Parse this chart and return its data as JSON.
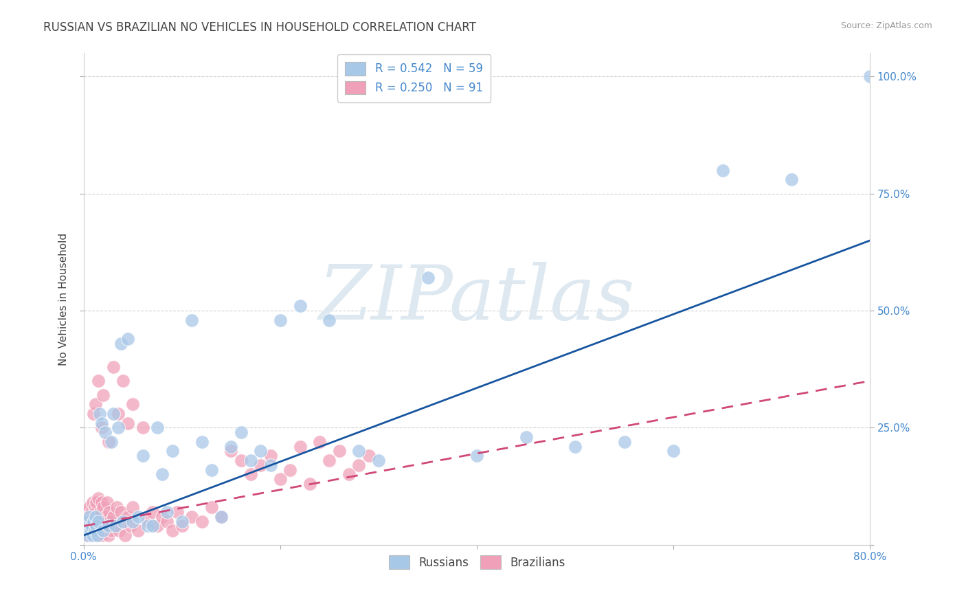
{
  "title": "RUSSIAN VS BRAZILIAN NO VEHICLES IN HOUSEHOLD CORRELATION CHART",
  "source": "Source: ZipAtlas.com",
  "ylabel": "No Vehicles in Household",
  "xlim": [
    0.0,
    0.8
  ],
  "ylim": [
    0.0,
    1.05
  ],
  "ytick_positions": [
    0.0,
    0.25,
    0.5,
    0.75,
    1.0
  ],
  "ytick_labels": [
    "",
    "25.0%",
    "50.0%",
    "75.0%",
    "100.0%"
  ],
  "legend_russian": "R = 0.542   N = 59",
  "legend_brazilian": "R = 0.250   N = 91",
  "russian_color": "#a8c8e8",
  "brazilian_color": "#f0a0b8",
  "russian_line_color": "#1855a0",
  "brazilian_line_color": "#d04878",
  "watermark": "ZIPatlas",
  "watermark_color": "#dde8f0",
  "background_color": "#ffffff",
  "grid_color": "#cccccc",
  "title_color": "#444444",
  "axis_label_color": "#4488cc",
  "russians_scatter_x": [
    0.002,
    0.003,
    0.004,
    0.005,
    0.006,
    0.007,
    0.008,
    0.009,
    0.01,
    0.011,
    0.012,
    0.013,
    0.014,
    0.015,
    0.016,
    0.018,
    0.02,
    0.022,
    0.025,
    0.028,
    0.03,
    0.032,
    0.035,
    0.038,
    0.04,
    0.045,
    0.05,
    0.055,
    0.06,
    0.065,
    0.07,
    0.075,
    0.08,
    0.085,
    0.09,
    0.1,
    0.11,
    0.12,
    0.13,
    0.14,
    0.15,
    0.16,
    0.17,
    0.18,
    0.19,
    0.2,
    0.22,
    0.25,
    0.28,
    0.3,
    0.35,
    0.4,
    0.45,
    0.5,
    0.55,
    0.6,
    0.65,
    0.72,
    0.8
  ],
  "russians_scatter_y": [
    0.03,
    0.05,
    0.02,
    0.04,
    0.06,
    0.03,
    0.04,
    0.02,
    0.05,
    0.03,
    0.06,
    0.04,
    0.02,
    0.05,
    0.28,
    0.26,
    0.03,
    0.24,
    0.04,
    0.22,
    0.28,
    0.04,
    0.25,
    0.43,
    0.05,
    0.44,
    0.05,
    0.06,
    0.19,
    0.04,
    0.04,
    0.25,
    0.15,
    0.07,
    0.2,
    0.05,
    0.48,
    0.22,
    0.16,
    0.06,
    0.21,
    0.24,
    0.18,
    0.2,
    0.17,
    0.48,
    0.51,
    0.48,
    0.2,
    0.18,
    0.57,
    0.19,
    0.23,
    0.21,
    0.22,
    0.2,
    0.8,
    0.78,
    1.0
  ],
  "brazilians_scatter_x": [
    0.001,
    0.002,
    0.002,
    0.003,
    0.003,
    0.004,
    0.004,
    0.005,
    0.005,
    0.006,
    0.006,
    0.007,
    0.007,
    0.008,
    0.008,
    0.009,
    0.009,
    0.01,
    0.01,
    0.011,
    0.011,
    0.012,
    0.012,
    0.013,
    0.013,
    0.014,
    0.015,
    0.015,
    0.016,
    0.017,
    0.018,
    0.018,
    0.019,
    0.02,
    0.02,
    0.022,
    0.023,
    0.024,
    0.025,
    0.026,
    0.027,
    0.028,
    0.03,
    0.032,
    0.034,
    0.036,
    0.038,
    0.04,
    0.042,
    0.045,
    0.048,
    0.05,
    0.055,
    0.06,
    0.065,
    0.07,
    0.075,
    0.08,
    0.085,
    0.09,
    0.095,
    0.1,
    0.11,
    0.12,
    0.13,
    0.14,
    0.15,
    0.16,
    0.17,
    0.18,
    0.19,
    0.2,
    0.21,
    0.22,
    0.23,
    0.24,
    0.25,
    0.26,
    0.27,
    0.28,
    0.29,
    0.01,
    0.012,
    0.015,
    0.018,
    0.02,
    0.025,
    0.03,
    0.035,
    0.04,
    0.045,
    0.05
  ],
  "brazilians_scatter_y": [
    0.03,
    0.02,
    0.05,
    0.04,
    0.07,
    0.03,
    0.06,
    0.02,
    0.05,
    0.04,
    0.08,
    0.03,
    0.06,
    0.02,
    0.07,
    0.04,
    0.09,
    0.03,
    0.06,
    0.05,
    0.08,
    0.02,
    0.07,
    0.04,
    0.09,
    0.03,
    0.06,
    0.1,
    0.04,
    0.07,
    0.02,
    0.09,
    0.05,
    0.03,
    0.08,
    0.06,
    0.04,
    0.09,
    0.02,
    0.07,
    0.05,
    0.03,
    0.06,
    0.04,
    0.08,
    0.03,
    0.07,
    0.05,
    0.02,
    0.06,
    0.04,
    0.08,
    0.03,
    0.25,
    0.05,
    0.07,
    0.04,
    0.06,
    0.05,
    0.03,
    0.07,
    0.04,
    0.06,
    0.05,
    0.08,
    0.06,
    0.2,
    0.18,
    0.15,
    0.17,
    0.19,
    0.14,
    0.16,
    0.21,
    0.13,
    0.22,
    0.18,
    0.2,
    0.15,
    0.17,
    0.19,
    0.28,
    0.3,
    0.35,
    0.25,
    0.32,
    0.22,
    0.38,
    0.28,
    0.35,
    0.26,
    0.3
  ],
  "russian_trendline_x": [
    0.0,
    0.8
  ],
  "russian_trendline_y": [
    0.02,
    0.65
  ],
  "brazilian_trendline_x": [
    0.0,
    0.8
  ],
  "brazilian_trendline_y": [
    0.04,
    0.35
  ]
}
